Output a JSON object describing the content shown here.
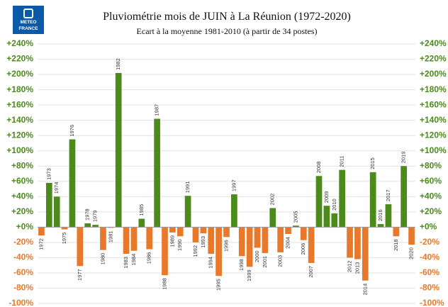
{
  "logo": {
    "line1": "METEO",
    "line2": "FRANCE"
  },
  "chart_data": {
    "type": "bar",
    "title": "Pluviométrie mois de JUIN à La Réunion (1972-2020)",
    "subtitle": "Ecart à la moyenne 1981-2010 (à partir de 34 postes)",
    "categories": [
      "1972",
      "1973",
      "1974",
      "1975",
      "1976",
      "1977",
      "1978",
      "1979",
      "1980",
      "1981",
      "1982",
      "1983",
      "1984",
      "1985",
      "1986",
      "1987",
      "1988",
      "1989",
      "1990",
      "1991",
      "1992",
      "1993",
      "1994",
      "1995",
      "1996",
      "1997",
      "1998",
      "1999",
      "2000",
      "2001",
      "2002",
      "2003",
      "2004",
      "2005",
      "2006",
      "2007",
      "2008",
      "2009",
      "2010",
      "2011",
      "2012",
      "2013",
      "2014",
      "2015",
      "2016",
      "2017",
      "2018",
      "2019",
      "2020"
    ],
    "values": [
      -11,
      58,
      40,
      -3,
      115,
      -51,
      5,
      3,
      -30,
      -1,
      202,
      -35,
      -31,
      11,
      -29,
      142,
      -63,
      -7,
      -12,
      41,
      -20,
      -8,
      -35,
      -64,
      -13,
      43,
      -38,
      -52,
      -27,
      -34,
      25,
      -33,
      -9,
      2,
      -17,
      -47,
      67,
      28,
      18,
      75,
      -40,
      -42,
      -70,
      72,
      4,
      30,
      -12,
      80,
      -23
    ],
    "positive_color": "#4b8a1b",
    "negative_color": "#e8792b",
    "ylim": [
      -100,
      240
    ],
    "yticks": [
      {
        "value": -100,
        "label": "-100%"
      },
      {
        "value": -80,
        "label": "-80%"
      },
      {
        "value": -60,
        "label": "-60%"
      },
      {
        "value": -40,
        "label": "-40%"
      },
      {
        "value": -20,
        "label": "-20%"
      },
      {
        "value": 0,
        "label": "+0%"
      },
      {
        "value": 20,
        "label": "+20%"
      },
      {
        "value": 40,
        "label": "+40%"
      },
      {
        "value": 60,
        "label": "+60%"
      },
      {
        "value": 80,
        "label": "+80%"
      },
      {
        "value": 100,
        "label": "+100%"
      },
      {
        "value": 120,
        "label": "+120%"
      },
      {
        "value": 140,
        "label": "+140%"
      },
      {
        "value": 160,
        "label": "+160%"
      },
      {
        "value": 180,
        "label": "+180%"
      },
      {
        "value": 200,
        "label": "+200%"
      },
      {
        "value": 220,
        "label": "+220%"
      },
      {
        "value": 240,
        "label": "+240%"
      }
    ],
    "grid": true,
    "secondary_axis": true
  }
}
